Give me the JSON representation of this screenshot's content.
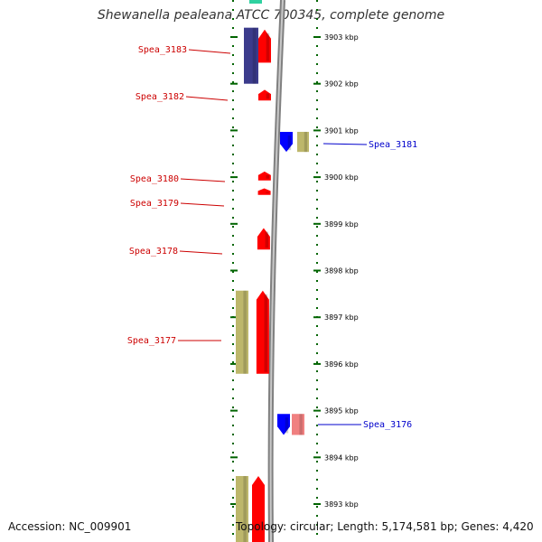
{
  "title": "Shewanella pealeana ATCC 700345, complete genome",
  "footer": {
    "accession": "Accession: NC_009901",
    "summary": "Topology: circular; Length: 5,174,581 bp; Genes: 4,420"
  },
  "colors": {
    "forward_cds": "#ff0000",
    "reverse_cds": "#0000ff",
    "khaki_feature": "#bdb76b",
    "navy_feature": "#3b3b8c",
    "pink_feature": "#f08080",
    "backbone": "#808080",
    "ticks": "#006400",
    "label_forward": "#cc0000",
    "label_reverse": "#0000cc"
  },
  "scale": {
    "unit": "kbp",
    "ticks": [
      {
        "kbp": 3903,
        "label": "3903 kbp"
      },
      {
        "kbp": 3902,
        "label": "3902 kbp"
      },
      {
        "kbp": 3901,
        "label": "3901 kbp"
      },
      {
        "kbp": 3900,
        "label": "3900 kbp"
      },
      {
        "kbp": 3899,
        "label": "3899 kbp"
      },
      {
        "kbp": 3898,
        "label": "3898 kbp"
      },
      {
        "kbp": 3897,
        "label": "3897 kbp"
      },
      {
        "kbp": 3896,
        "label": "3896 kbp"
      },
      {
        "kbp": 3895,
        "label": "3895 kbp"
      },
      {
        "kbp": 3894,
        "label": "3894 kbp"
      },
      {
        "kbp": 3893,
        "label": "3893 kbp"
      }
    ]
  },
  "genes": [
    {
      "id": "Spea_3183",
      "strand": "+",
      "start_kbp": 3902.45,
      "end_kbp": 3903.16
    },
    {
      "id": "Spea_3182",
      "strand": "+",
      "start_kbp": 3901.64,
      "end_kbp": 3901.87
    },
    {
      "id": "Spea_3181",
      "strand": "-",
      "start_kbp": 3900.54,
      "end_kbp": 3900.97
    },
    {
      "id": "Spea_3180",
      "strand": "+",
      "start_kbp": 3899.93,
      "end_kbp": 3900.12
    },
    {
      "id": "Spea_3179",
      "strand": "+",
      "start_kbp": 3899.62,
      "end_kbp": 3899.76
    },
    {
      "id": "Spea_3178",
      "strand": "+",
      "start_kbp": 3898.45,
      "end_kbp": 3898.91
    },
    {
      "id": "Spea_3177",
      "strand": "+",
      "start_kbp": 3895.79,
      "end_kbp": 3897.57
    },
    {
      "id": "Spea_3176",
      "strand": "-",
      "start_kbp": 3894.48,
      "end_kbp": 3894.93
    }
  ]
}
